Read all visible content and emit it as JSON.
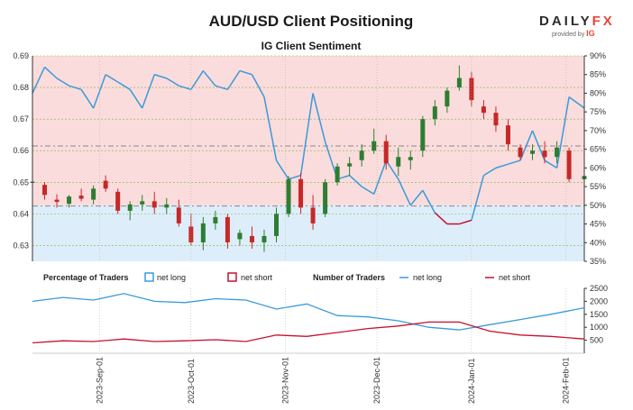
{
  "title": "AUD/USD Client Positioning",
  "subtitle": "IG Client Sentiment",
  "logo": {
    "brand_a": "DAILY",
    "brand_b": "FX",
    "provided": "provided by",
    "ig": "IG"
  },
  "colors": {
    "long": "#3a9ad9",
    "short": "#c8102e",
    "long_fill": "#ddeefa",
    "short_fill": "#fbdcdc",
    "candle_up": "#2e7d32",
    "candle_down": "#c62828",
    "price_grid": "#7cb342"
  },
  "legend": {
    "pct_title": "Percentage of Traders",
    "pct_long": "net long",
    "pct_short": "net short",
    "num_title": "Number of Traders",
    "num_long": "net long",
    "num_short": "net short"
  },
  "chart_data": [
    {
      "type": "candlestick+area",
      "title": "IG Client Sentiment",
      "y_left": {
        "range": [
          0.625,
          0.69
        ],
        "ticks": [
          "0.63",
          "0.64",
          "0.65",
          "0.66",
          "0.67",
          "0.68",
          "0.69"
        ]
      },
      "y_right": {
        "range": [
          35,
          90
        ],
        "unit": "%",
        "ticks": [
          "35%",
          "40%",
          "45%",
          "50%",
          "55%",
          "60%",
          "65%",
          "70%",
          "75%",
          "80%",
          "85%",
          "90%"
        ]
      },
      "x_ticks": [
        "2023-Sep-01",
        "2023-Oct-01",
        "2023-Nov-01",
        "2023-Dec-01",
        "2024-Jan-01",
        "2024-Feb-01"
      ],
      "x_range": [
        "2023-08-10",
        "2024-02-07"
      ],
      "reference_lines": [
        0.6615,
        0.6425
      ],
      "net_long_pct": [
        [
          "2023-08-10",
          80
        ],
        [
          "2023-08-14",
          87
        ],
        [
          "2023-08-18",
          84
        ],
        [
          "2023-08-22",
          82
        ],
        [
          "2023-08-26",
          81
        ],
        [
          "2023-08-30",
          76
        ],
        [
          "2023-09-03",
          85
        ],
        [
          "2023-09-07",
          83
        ],
        [
          "2023-09-11",
          81
        ],
        [
          "2023-09-15",
          76
        ],
        [
          "2023-09-19",
          85
        ],
        [
          "2023-09-23",
          84
        ],
        [
          "2023-09-27",
          82
        ],
        [
          "2023-10-01",
          81
        ],
        [
          "2023-10-05",
          86
        ],
        [
          "2023-10-09",
          82
        ],
        [
          "2023-10-13",
          81
        ],
        [
          "2023-10-17",
          86
        ],
        [
          "2023-10-21",
          85
        ],
        [
          "2023-10-25",
          79
        ],
        [
          "2023-10-29",
          62
        ],
        [
          "2023-11-02",
          57
        ],
        [
          "2023-11-06",
          58
        ],
        [
          "2023-11-10",
          80
        ],
        [
          "2023-11-14",
          67
        ],
        [
          "2023-11-18",
          57
        ],
        [
          "2023-11-22",
          58
        ],
        [
          "2023-11-26",
          55
        ],
        [
          "2023-11-30",
          53
        ],
        [
          "2023-12-04",
          62
        ],
        [
          "2023-12-08",
          57
        ],
        [
          "2023-12-12",
          50
        ],
        [
          "2023-12-16",
          54
        ],
        [
          "2023-12-20",
          48
        ],
        [
          "2023-12-24",
          45
        ],
        [
          "2023-12-28",
          45
        ],
        [
          "2024-01-01",
          46
        ],
        [
          "2024-01-05",
          58
        ],
        [
          "2024-01-09",
          60
        ],
        [
          "2024-01-13",
          61
        ],
        [
          "2024-01-17",
          62
        ],
        [
          "2024-01-21",
          70
        ],
        [
          "2024-01-25",
          62
        ],
        [
          "2024-01-29",
          60
        ],
        [
          "2024-02-02",
          79
        ],
        [
          "2024-02-07",
          76
        ]
      ],
      "candles": [
        [
          "2023-08-10",
          0.6498,
          0.6511,
          0.6488,
          0.6502
        ],
        [
          "2023-08-14",
          0.6492,
          0.65,
          0.6445,
          0.646
        ],
        [
          "2023-08-18",
          0.6445,
          0.6462,
          0.642,
          0.6438
        ],
        [
          "2023-08-22",
          0.6432,
          0.646,
          0.642,
          0.6455
        ],
        [
          "2023-08-26",
          0.6458,
          0.648,
          0.644,
          0.6448
        ],
        [
          "2023-08-30",
          0.6445,
          0.649,
          0.643,
          0.648
        ],
        [
          "2023-09-03",
          0.6505,
          0.6522,
          0.647,
          0.648
        ],
        [
          "2023-09-07",
          0.647,
          0.648,
          0.64,
          0.641
        ],
        [
          "2023-09-11",
          0.641,
          0.644,
          0.638,
          0.643
        ],
        [
          "2023-09-15",
          0.643,
          0.646,
          0.641,
          0.644
        ],
        [
          "2023-09-19",
          0.644,
          0.647,
          0.64,
          0.642
        ],
        [
          "2023-09-23",
          0.642,
          0.645,
          0.64,
          0.643
        ],
        [
          "2023-09-27",
          0.642,
          0.6445,
          0.636,
          0.637
        ],
        [
          "2023-10-01",
          0.636,
          0.64,
          0.63,
          0.631
        ],
        [
          "2023-10-05",
          0.631,
          0.639,
          0.6285,
          0.637
        ],
        [
          "2023-10-09",
          0.637,
          0.641,
          0.635,
          0.639
        ],
        [
          "2023-10-13",
          0.639,
          0.64,
          0.629,
          0.631
        ],
        [
          "2023-10-17",
          0.632,
          0.635,
          0.63,
          0.634
        ],
        [
          "2023-10-21",
          0.633,
          0.636,
          0.629,
          0.631
        ],
        [
          "2023-10-25",
          0.631,
          0.635,
          0.628,
          0.633
        ],
        [
          "2023-10-29",
          0.633,
          0.642,
          0.631,
          0.64
        ],
        [
          "2023-11-02",
          0.64,
          0.652,
          0.639,
          0.651
        ],
        [
          "2023-11-06",
          0.651,
          0.653,
          0.64,
          0.642
        ],
        [
          "2023-11-10",
          0.642,
          0.646,
          0.635,
          0.637
        ],
        [
          "2023-11-14",
          0.64,
          0.651,
          0.639,
          0.65
        ],
        [
          "2023-11-18",
          0.65,
          0.656,
          0.649,
          0.655
        ],
        [
          "2023-11-22",
          0.655,
          0.658,
          0.652,
          0.656
        ],
        [
          "2023-11-26",
          0.657,
          0.662,
          0.655,
          0.66
        ],
        [
          "2023-11-30",
          0.66,
          0.667,
          0.659,
          0.663
        ],
        [
          "2023-12-04",
          0.663,
          0.665,
          0.654,
          0.656
        ],
        [
          "2023-12-08",
          0.655,
          0.661,
          0.652,
          0.658
        ],
        [
          "2023-12-12",
          0.657,
          0.66,
          0.654,
          0.658
        ],
        [
          "2023-12-16",
          0.66,
          0.671,
          0.658,
          0.67
        ],
        [
          "2023-12-20",
          0.67,
          0.676,
          0.668,
          0.674
        ],
        [
          "2023-12-24",
          0.674,
          0.68,
          0.672,
          0.679
        ],
        [
          "2023-12-28",
          0.68,
          0.687,
          0.679,
          0.683
        ],
        [
          "2024-01-01",
          0.683,
          0.685,
          0.674,
          0.676
        ],
        [
          "2024-01-05",
          0.674,
          0.676,
          0.67,
          0.672
        ],
        [
          "2024-01-09",
          0.672,
          0.674,
          0.666,
          0.668
        ],
        [
          "2024-01-13",
          0.668,
          0.67,
          0.66,
          0.662
        ],
        [
          "2024-01-17",
          0.661,
          0.662,
          0.657,
          0.658
        ],
        [
          "2024-01-21",
          0.659,
          0.662,
          0.657,
          0.66
        ],
        [
          "2024-01-25",
          0.66,
          0.663,
          0.656,
          0.658
        ],
        [
          "2024-01-29",
          0.658,
          0.663,
          0.656,
          0.661
        ],
        [
          "2024-02-02",
          0.66,
          0.661,
          0.65,
          0.651
        ],
        [
          "2024-02-07",
          0.651,
          0.653,
          0.649,
          0.652
        ]
      ]
    },
    {
      "type": "line",
      "title": "Number of Traders",
      "y_right": {
        "range": [
          0,
          2500
        ],
        "ticks": [
          "500",
          "1000",
          "1500",
          "2000",
          "2500"
        ]
      },
      "series": [
        {
          "name": "net long",
          "values": [
            [
              "2023-08-10",
              2000
            ],
            [
              "2023-08-20",
              2150
            ],
            [
              "2023-08-30",
              2050
            ],
            [
              "2023-09-09",
              2300
            ],
            [
              "2023-09-19",
              2000
            ],
            [
              "2023-09-29",
              1950
            ],
            [
              "2023-10-09",
              2100
            ],
            [
              "2023-10-19",
              2050
            ],
            [
              "2023-10-29",
              1700
            ],
            [
              "2023-11-08",
              1900
            ],
            [
              "2023-11-18",
              1450
            ],
            [
              "2023-11-28",
              1400
            ],
            [
              "2023-12-08",
              1250
            ],
            [
              "2023-12-18",
              1000
            ],
            [
              "2023-12-28",
              900
            ],
            [
              "2024-01-07",
              1100
            ],
            [
              "2024-01-17",
              1300
            ],
            [
              "2024-01-27",
              1500
            ],
            [
              "2024-02-07",
              1750
            ]
          ]
        },
        {
          "name": "net short",
          "values": [
            [
              "2023-08-10",
              400
            ],
            [
              "2023-08-20",
              480
            ],
            [
              "2023-08-30",
              450
            ],
            [
              "2023-09-09",
              550
            ],
            [
              "2023-09-19",
              450
            ],
            [
              "2023-09-29",
              480
            ],
            [
              "2023-10-09",
              520
            ],
            [
              "2023-10-19",
              450
            ],
            [
              "2023-10-29",
              700
            ],
            [
              "2023-11-08",
              650
            ],
            [
              "2023-11-18",
              800
            ],
            [
              "2023-11-28",
              950
            ],
            [
              "2023-12-08",
              1050
            ],
            [
              "2023-12-18",
              1200
            ],
            [
              "2023-12-28",
              1200
            ],
            [
              "2024-01-07",
              850
            ],
            [
              "2024-01-17",
              700
            ],
            [
              "2024-01-27",
              650
            ],
            [
              "2024-02-07",
              550
            ]
          ]
        }
      ]
    }
  ]
}
